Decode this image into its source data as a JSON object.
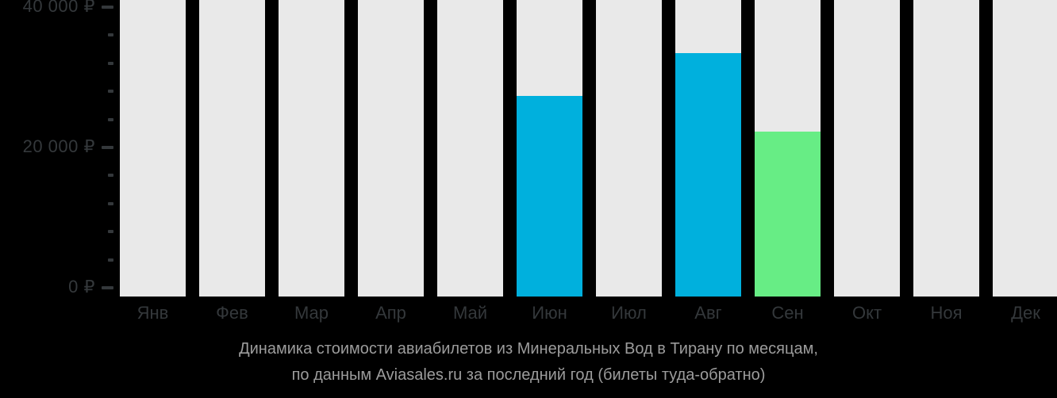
{
  "title": {
    "line1": "Динамика стоимости авиабилетов из Минеральных Вод в Тирану по месяцам,",
    "line2": "по данным Aviasales.ru за последний год (билеты туда-обратно)"
  },
  "chart_data": {
    "type": "bar",
    "title": "Динамика стоимости авиабилетов из Минеральных Вод в Тирану по месяцам",
    "subtitle": "по данным Aviasales.ru за последний год (билеты туда-обратно)",
    "categories": [
      "Янв",
      "Фев",
      "Мар",
      "Апр",
      "Май",
      "Июн",
      "Июл",
      "Авг",
      "Сен",
      "Окт",
      "Ноя",
      "Дек"
    ],
    "values": [
      null,
      null,
      null,
      null,
      null,
      27400,
      null,
      33400,
      22300,
      null,
      null,
      null
    ],
    "bar_colors": [
      null,
      null,
      null,
      null,
      null,
      "#00b0dd",
      null,
      "#00b0dd",
      "#67ed85",
      null,
      null,
      null
    ],
    "no_data_bar_color": "#e9e9e9",
    "currency": "₽",
    "xlabel": "",
    "ylabel": "",
    "ylim": [
      0,
      40000
    ],
    "y_major_ticks": [
      {
        "value": 0,
        "label": "0 ₽"
      },
      {
        "value": 20000,
        "label": "20 000 ₽"
      },
      {
        "value": 40000,
        "label": "40 000 ₽"
      }
    ],
    "y_minor_tick_step": 4000,
    "grid": false,
    "legend": "none"
  },
  "colors": {
    "background": "#000000",
    "bar_blue": "#00b0dd",
    "bar_green": "#67ed85",
    "bar_empty": "#e9e9e9",
    "axis_text": "#34383b",
    "tick_mark": "#34383b",
    "title_text": "#9c9c9c"
  }
}
